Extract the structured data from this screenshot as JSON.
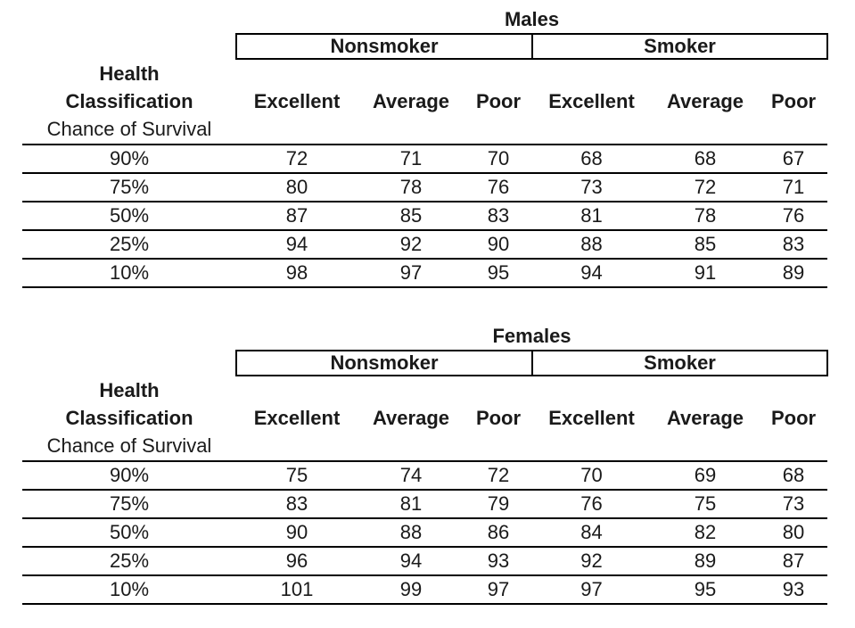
{
  "colors": {
    "background": "#ffffff",
    "text": "#1a1a1a",
    "rule_lines": "#000000"
  },
  "chart_data": [
    {
      "type": "table",
      "title": "Males",
      "group_headers": [
        "Nonsmoker",
        "Smoker"
      ],
      "row_header_lines": [
        "Health",
        "Classification",
        "Chance of Survival"
      ],
      "column_headers": [
        "Excellent",
        "Average",
        "Poor",
        "Excellent",
        "Average",
        "Poor"
      ],
      "rows": [
        {
          "label": "90%",
          "values": [
            72,
            71,
            70,
            68,
            68,
            67
          ]
        },
        {
          "label": "75%",
          "values": [
            80,
            78,
            76,
            73,
            72,
            71
          ]
        },
        {
          "label": "50%",
          "values": [
            87,
            85,
            83,
            81,
            78,
            76
          ]
        },
        {
          "label": "25%",
          "values": [
            94,
            92,
            90,
            88,
            85,
            83
          ]
        },
        {
          "label": "10%",
          "values": [
            98,
            97,
            95,
            94,
            91,
            89
          ]
        }
      ]
    },
    {
      "type": "table",
      "title": "Females",
      "group_headers": [
        "Nonsmoker",
        "Smoker"
      ],
      "row_header_lines": [
        "Health",
        "Classification",
        "Chance of Survival"
      ],
      "column_headers": [
        "Excellent",
        "Average",
        "Poor",
        "Excellent",
        "Average",
        "Poor"
      ],
      "rows": [
        {
          "label": "90%",
          "values": [
            75,
            74,
            72,
            70,
            69,
            68
          ]
        },
        {
          "label": "75%",
          "values": [
            83,
            81,
            79,
            76,
            75,
            73
          ]
        },
        {
          "label": "50%",
          "values": [
            90,
            88,
            86,
            84,
            82,
            80
          ]
        },
        {
          "label": "25%",
          "values": [
            96,
            94,
            93,
            92,
            89,
            87
          ]
        },
        {
          "label": "10%",
          "values": [
            101,
            99,
            97,
            97,
            95,
            93
          ]
        }
      ]
    }
  ]
}
